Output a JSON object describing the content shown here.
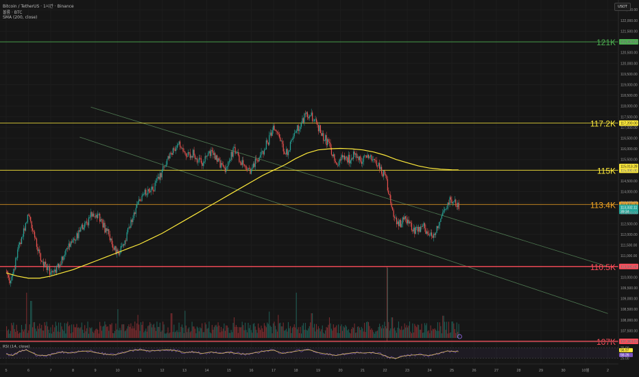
{
  "header": {
    "title": "Bitcoin / TetherUS · 1시간 · Binance",
    "volume_label": "볼륨 · BTC",
    "sma_label": "SMA (200, close)"
  },
  "currency_button": "USDT",
  "colors": {
    "background": "#161616",
    "up": "#26a69a",
    "down": "#ef5350",
    "sma": "#ffeb3b",
    "level_green": "#4caf50",
    "level_yellow": "#ffeb3b",
    "level_orange": "#f5a623",
    "level_red": "#ff4d5a",
    "channel": "#4f7a52",
    "rsi_line": "#e0c060"
  },
  "chart_data": {
    "type": "line",
    "price_axis_ticks": [
      "122,500.00",
      "122,000.00",
      "121,500.00",
      "121,000.00",
      "120,500.00",
      "120,000.00",
      "119,500.00",
      "119,000.00",
      "118,500.00",
      "118,000.00",
      "117,500.00",
      "117,000.00",
      "116,500.00",
      "116,000.00",
      "115,500.00",
      "115,000.00",
      "114,500.00",
      "114,000.00",
      "113,500.00",
      "113,000.00",
      "112,500.00",
      "112,000.00",
      "111,500.00",
      "111,000.00",
      "110,500.00",
      "110,000.00",
      "109,500.00",
      "109,000.00",
      "108,500.00",
      "108,000.00",
      "107,500.00",
      "107,000.00"
    ],
    "ylim": [
      107000,
      122700
    ],
    "x_ticks": [
      "5",
      "6",
      "7",
      "8",
      "9",
      "10",
      "11",
      "12",
      "13",
      "14",
      "15",
      "16",
      "17",
      "18",
      "19",
      "20",
      "21",
      "22",
      "23",
      "24",
      "25",
      "26",
      "27",
      "28",
      "29",
      "30",
      "10월",
      "2"
    ],
    "levels": [
      {
        "label": "121K",
        "value": 121000,
        "axis_label": "121,000.00",
        "color": "green"
      },
      {
        "label": "117.2K",
        "value": 117200,
        "axis_label": "117,200.00",
        "color": "yellow"
      },
      {
        "label": "115K",
        "value": 115000,
        "axis_label": "115,000.00",
        "color": "yellow"
      },
      {
        "label": "113.4K",
        "value": 113400,
        "axis_label": "113,400.00",
        "color": "orange"
      },
      {
        "label": "110.5K",
        "value": 110500,
        "axis_label": "110,500.00",
        "color": "red"
      },
      {
        "label": "107K",
        "value": 107000,
        "axis_label": "107,000.00",
        "color": "red"
      }
    ],
    "sma_value_label": "115,013.28",
    "last_price_label": "113,332.11",
    "countdown_label": "39:34",
    "channel_upper": {
      "from": [
        8.8,
        117950
      ],
      "to": [
        32,
        110500
      ]
    },
    "channel_lower": {
      "from": [
        8.3,
        116550
      ],
      "to": [
        32,
        108300
      ]
    },
    "price_series": [
      [
        5.0,
        110300
      ],
      [
        5.15,
        109700
      ],
      [
        5.3,
        110200
      ],
      [
        5.45,
        111100
      ],
      [
        5.6,
        111500
      ],
      [
        5.75,
        112000
      ],
      [
        5.9,
        112700
      ],
      [
        6.0,
        113100
      ],
      [
        6.1,
        112600
      ],
      [
        6.25,
        111800
      ],
      [
        6.45,
        111200
      ],
      [
        6.6,
        110700
      ],
      [
        6.8,
        110400
      ],
      [
        7.0,
        110200
      ],
      [
        7.2,
        110300
      ],
      [
        7.4,
        110700
      ],
      [
        7.6,
        111100
      ],
      [
        7.8,
        111400
      ],
      [
        8.0,
        111700
      ],
      [
        8.2,
        112000
      ],
      [
        8.4,
        112300
      ],
      [
        8.6,
        112500
      ],
      [
        8.8,
        112900
      ],
      [
        9.0,
        113000
      ],
      [
        9.2,
        112700
      ],
      [
        9.4,
        112300
      ],
      [
        9.6,
        112000
      ],
      [
        9.8,
        111400
      ],
      [
        10.0,
        111000
      ],
      [
        10.2,
        111500
      ],
      [
        10.4,
        112000
      ],
      [
        10.6,
        112600
      ],
      [
        10.8,
        113300
      ],
      [
        11.0,
        113700
      ],
      [
        11.2,
        114000
      ],
      [
        11.4,
        114100
      ],
      [
        11.6,
        114200
      ],
      [
        11.8,
        114600
      ],
      [
        12.0,
        115000
      ],
      [
        12.2,
        115400
      ],
      [
        12.4,
        115800
      ],
      [
        12.6,
        116100
      ],
      [
        12.8,
        116300
      ],
      [
        13.0,
        115900
      ],
      [
        13.2,
        115700
      ],
      [
        13.4,
        115800
      ],
      [
        13.6,
        115500
      ],
      [
        13.8,
        115300
      ],
      [
        14.0,
        115600
      ],
      [
        14.2,
        115800
      ],
      [
        14.4,
        115600
      ],
      [
        14.6,
        115300
      ],
      [
        14.8,
        115000
      ],
      [
        15.0,
        115400
      ],
      [
        15.2,
        116100
      ],
      [
        15.4,
        115700
      ],
      [
        15.6,
        115200
      ],
      [
        15.8,
        114900
      ],
      [
        16.0,
        115100
      ],
      [
        16.2,
        115400
      ],
      [
        16.4,
        115700
      ],
      [
        16.6,
        116100
      ],
      [
        16.8,
        116500
      ],
      [
        17.0,
        117100
      ],
      [
        17.2,
        116600
      ],
      [
        17.4,
        116000
      ],
      [
        17.6,
        115900
      ],
      [
        17.8,
        116300
      ],
      [
        18.0,
        116800
      ],
      [
        18.2,
        117200
      ],
      [
        18.4,
        117500
      ],
      [
        18.6,
        117600
      ],
      [
        18.8,
        117400
      ],
      [
        19.0,
        117000
      ],
      [
        19.2,
        116600
      ],
      [
        19.4,
        116300
      ],
      [
        19.6,
        115800
      ],
      [
        19.8,
        115300
      ],
      [
        20.0,
        115500
      ],
      [
        20.2,
        115600
      ],
      [
        20.4,
        115500
      ],
      [
        20.6,
        115700
      ],
      [
        20.8,
        115500
      ],
      [
        21.0,
        115500
      ],
      [
        21.2,
        115600
      ],
      [
        21.4,
        115600
      ],
      [
        21.6,
        115300
      ],
      [
        21.8,
        115100
      ],
      [
        22.0,
        114600
      ],
      [
        22.2,
        113800
      ],
      [
        22.35,
        112900
      ],
      [
        22.5,
        112600
      ],
      [
        22.7,
        112500
      ],
      [
        22.9,
        112800
      ],
      [
        23.1,
        112500
      ],
      [
        23.3,
        112200
      ],
      [
        23.5,
        112300
      ],
      [
        23.7,
        112400
      ],
      [
        23.9,
        112100
      ],
      [
        24.1,
        111800
      ],
      [
        24.3,
        112300
      ],
      [
        24.5,
        112700
      ],
      [
        24.7,
        113100
      ],
      [
        24.9,
        113700
      ],
      [
        25.1,
        113600
      ],
      [
        25.3,
        113330
      ]
    ],
    "sma_series": [
      [
        5.0,
        110200
      ],
      [
        5.5,
        110050
      ],
      [
        6.0,
        109950
      ],
      [
        6.5,
        109950
      ],
      [
        7.0,
        110050
      ],
      [
        7.5,
        110200
      ],
      [
        8.0,
        110350
      ],
      [
        8.5,
        110550
      ],
      [
        9.0,
        110750
      ],
      [
        9.5,
        110950
      ],
      [
        10.0,
        111150
      ],
      [
        10.5,
        111350
      ],
      [
        11.0,
        111550
      ],
      [
        11.5,
        111800
      ],
      [
        12.0,
        112050
      ],
      [
        12.5,
        112350
      ],
      [
        13.0,
        112650
      ],
      [
        13.5,
        112950
      ],
      [
        14.0,
        113250
      ],
      [
        14.5,
        113550
      ],
      [
        15.0,
        113850
      ],
      [
        15.5,
        114150
      ],
      [
        16.0,
        114450
      ],
      [
        16.5,
        114750
      ],
      [
        17.0,
        115000
      ],
      [
        17.5,
        115250
      ],
      [
        18.0,
        115550
      ],
      [
        18.5,
        115800
      ],
      [
        19.0,
        115950
      ],
      [
        19.5,
        116000
      ],
      [
        20.0,
        116020
      ],
      [
        20.5,
        116000
      ],
      [
        21.0,
        115950
      ],
      [
        21.5,
        115850
      ],
      [
        22.0,
        115700
      ],
      [
        22.5,
        115500
      ],
      [
        23.0,
        115350
      ],
      [
        23.5,
        115200
      ],
      [
        24.0,
        115100
      ],
      [
        24.5,
        115050
      ],
      [
        25.0,
        115020
      ],
      [
        25.3,
        115013
      ]
    ],
    "volume_spikes": [
      [
        5.9,
        0.55
      ],
      [
        6.1,
        0.45
      ],
      [
        10.0,
        0.35
      ],
      [
        10.9,
        0.28
      ],
      [
        12.4,
        0.3
      ],
      [
        13.0,
        0.33
      ],
      [
        15.2,
        0.25
      ],
      [
        16.8,
        0.32
      ],
      [
        17.2,
        0.28
      ],
      [
        18.0,
        0.55
      ],
      [
        18.7,
        0.3
      ],
      [
        19.5,
        0.25
      ],
      [
        21.2,
        0.2
      ],
      [
        22.1,
        0.85
      ],
      [
        22.3,
        0.25
      ],
      [
        23.1,
        0.2
      ],
      [
        24.6,
        0.27
      ],
      [
        25.0,
        0.2
      ]
    ],
    "rsi": {
      "label": "RSI (14, close)",
      "value_labels": [
        "56.97",
        "56.26"
      ],
      "level_labels": [
        "75.00",
        "25.00"
      ],
      "levels": [
        75,
        25
      ],
      "values": [
        [
          5.0,
          45
        ],
        [
          5.3,
          38
        ],
        [
          5.6,
          58
        ],
        [
          5.9,
          65
        ],
        [
          6.1,
          55
        ],
        [
          6.4,
          40
        ],
        [
          6.8,
          38
        ],
        [
          7.1,
          45
        ],
        [
          7.5,
          55
        ],
        [
          7.9,
          50
        ],
        [
          8.3,
          58
        ],
        [
          8.7,
          60
        ],
        [
          9.0,
          52
        ],
        [
          9.4,
          45
        ],
        [
          9.8,
          40
        ],
        [
          10.2,
          50
        ],
        [
          10.6,
          62
        ],
        [
          11.0,
          66
        ],
        [
          11.4,
          60
        ],
        [
          11.8,
          62
        ],
        [
          12.2,
          66
        ],
        [
          12.6,
          62
        ],
        [
          13.0,
          52
        ],
        [
          13.4,
          55
        ],
        [
          13.8,
          48
        ],
        [
          14.2,
          55
        ],
        [
          14.6,
          48
        ],
        [
          15.0,
          54
        ],
        [
          15.4,
          47
        ],
        [
          15.8,
          45
        ],
        [
          16.2,
          52
        ],
        [
          16.6,
          60
        ],
        [
          17.0,
          64
        ],
        [
          17.4,
          48
        ],
        [
          17.8,
          55
        ],
        [
          18.2,
          62
        ],
        [
          18.6,
          66
        ],
        [
          19.0,
          52
        ],
        [
          19.4,
          45
        ],
        [
          19.8,
          38
        ],
        [
          20.2,
          46
        ],
        [
          20.6,
          52
        ],
        [
          21.0,
          50
        ],
        [
          21.4,
          52
        ],
        [
          21.8,
          45
        ],
        [
          22.2,
          28
        ],
        [
          22.5,
          24
        ],
        [
          22.8,
          35
        ],
        [
          23.2,
          40
        ],
        [
          23.6,
          42
        ],
        [
          24.0,
          38
        ],
        [
          24.4,
          48
        ],
        [
          24.8,
          60
        ],
        [
          25.1,
          58
        ],
        [
          25.3,
          56.97
        ]
      ]
    }
  }
}
